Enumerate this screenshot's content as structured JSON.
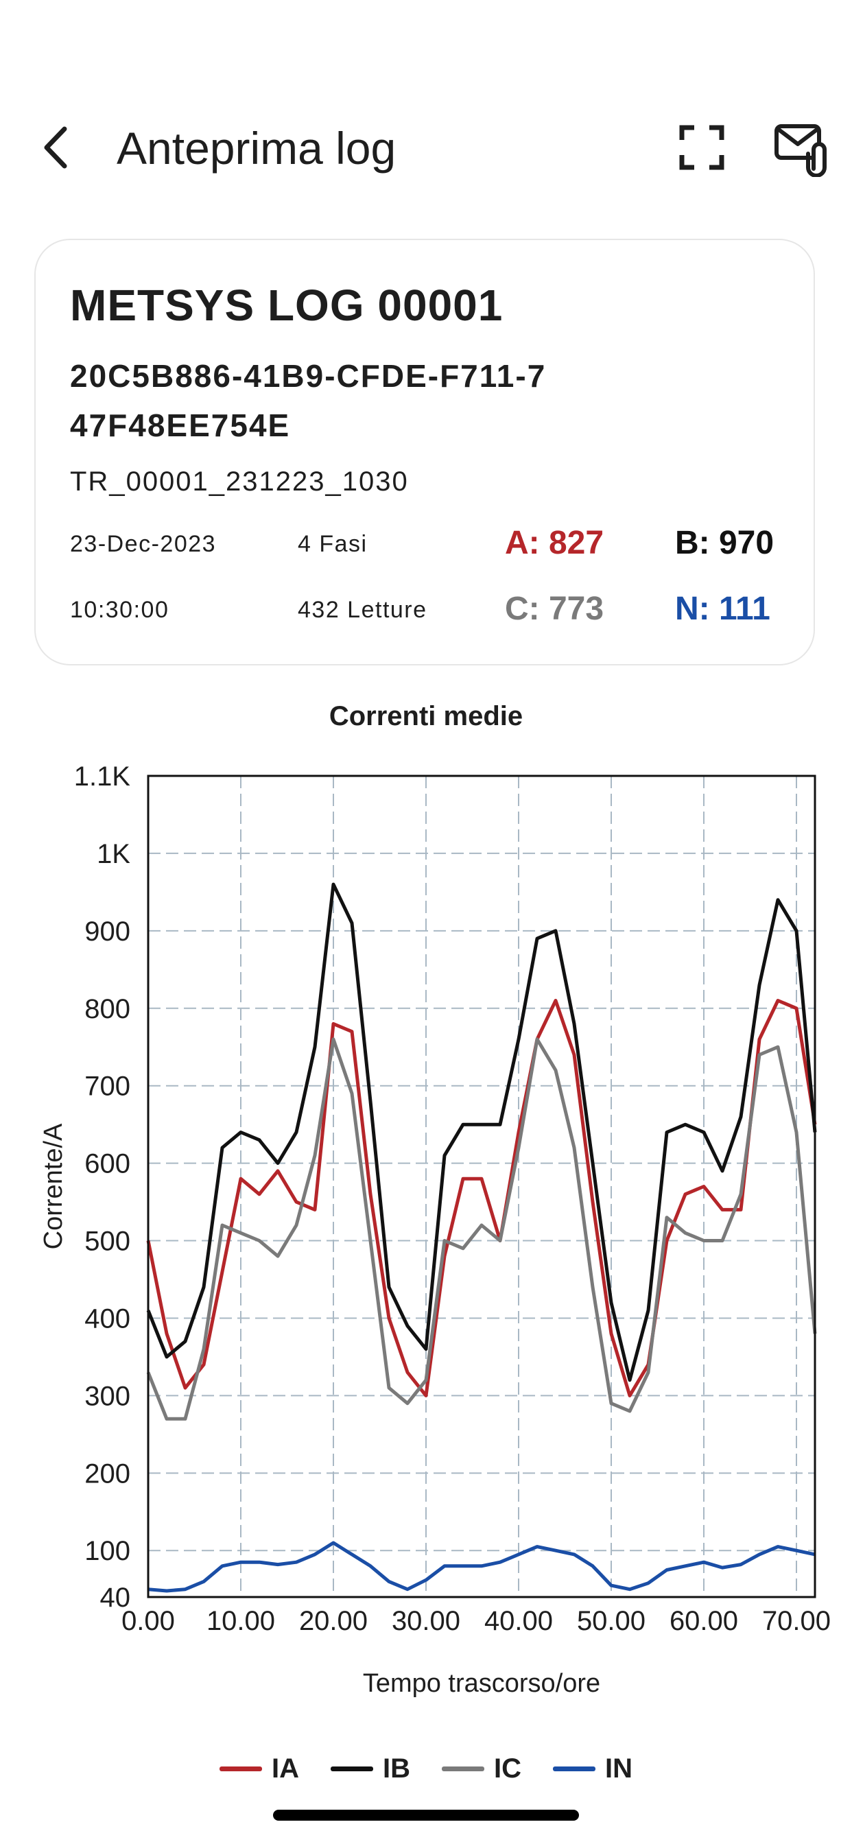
{
  "header": {
    "title": "Anteprima log",
    "back_icon": "chevron-left-icon",
    "expand_icon": "fullscreen-icon",
    "mail_icon": "mail-attachment-icon"
  },
  "card": {
    "log_name": "METSYS LOG 00001",
    "uuid": "20C5B886-41B9-CFDE-F711-747F48EE754E",
    "file_name": "TR_00001_231223_1030",
    "date": "23-Dec-2023",
    "time": "10:30:00",
    "phases": "4 Fasi",
    "readings": "432 Letture",
    "stats": {
      "a": "A: 827",
      "b": "B: 970",
      "c": "C: 773",
      "n": "N: 111"
    }
  },
  "colors": {
    "a": "#b5262a",
    "b": "#111111",
    "c": "#7a7a7a",
    "n": "#1a4ea6"
  },
  "chart_data": {
    "type": "line",
    "title": "Correnti medie",
    "xlabel": "Tempo trascorso/ore",
    "ylabel": "Corrente/A",
    "xlim": [
      0,
      72
    ],
    "ylim": [
      40,
      1100
    ],
    "x_ticks": [
      "0.00",
      "10.00",
      "20.00",
      "30.00",
      "40.00",
      "50.00",
      "60.00",
      "70.00"
    ],
    "y_ticks": [
      "40",
      "100",
      "200",
      "300",
      "400",
      "500",
      "600",
      "700",
      "800",
      "900",
      "1K",
      "1.1K"
    ],
    "grid": true,
    "legend_position": "bottom",
    "x": [
      0,
      2,
      4,
      6,
      8,
      10,
      12,
      14,
      16,
      18,
      20,
      22,
      24,
      26,
      28,
      30,
      32,
      34,
      36,
      38,
      40,
      42,
      44,
      46,
      48,
      50,
      52,
      54,
      56,
      58,
      60,
      62,
      64,
      66,
      68,
      70,
      72
    ],
    "series": [
      {
        "name": "IA",
        "color": "#b5262a",
        "values": [
          500,
          380,
          310,
          340,
          460,
          580,
          560,
          590,
          550,
          540,
          780,
          770,
          560,
          400,
          330,
          300,
          480,
          580,
          580,
          500,
          640,
          760,
          810,
          740,
          550,
          380,
          300,
          340,
          500,
          560,
          570,
          540,
          540,
          760,
          810,
          800,
          650
        ]
      },
      {
        "name": "IB",
        "color": "#111111",
        "values": [
          410,
          350,
          370,
          440,
          620,
          640,
          630,
          600,
          640,
          750,
          960,
          910,
          680,
          440,
          390,
          360,
          610,
          650,
          650,
          650,
          760,
          890,
          900,
          780,
          600,
          420,
          320,
          410,
          640,
          650,
          640,
          590,
          660,
          830,
          940,
          900,
          640
        ]
      },
      {
        "name": "IC",
        "color": "#7a7a7a",
        "values": [
          330,
          270,
          270,
          360,
          520,
          510,
          500,
          480,
          520,
          610,
          760,
          690,
          500,
          310,
          290,
          320,
          500,
          490,
          520,
          500,
          620,
          760,
          720,
          620,
          440,
          290,
          280,
          330,
          530,
          510,
          500,
          500,
          560,
          740,
          750,
          640,
          380
        ]
      },
      {
        "name": "IN",
        "color": "#1a4ea6",
        "values": [
          50,
          48,
          50,
          60,
          80,
          85,
          85,
          82,
          85,
          95,
          110,
          95,
          80,
          60,
          50,
          62,
          80,
          80,
          80,
          85,
          95,
          105,
          100,
          95,
          80,
          55,
          50,
          58,
          75,
          80,
          85,
          78,
          82,
          95,
          105,
          100,
          95
        ]
      }
    ]
  }
}
